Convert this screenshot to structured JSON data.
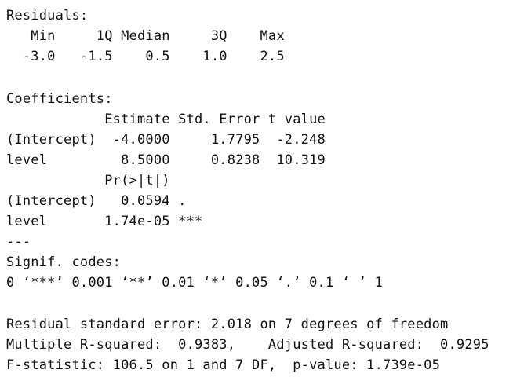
{
  "residuals": {
    "heading": "Residuals:",
    "header_row": "   Min     1Q Median     3Q    Max",
    "value_row": "  -3.0   -1.5    0.5    1.0    2.5"
  },
  "coefficients": {
    "heading": "Coefficients:",
    "header_row_1": "            Estimate Std. Error t value",
    "intercept_row_1": "(Intercept)  -4.0000     1.7795  -2.248",
    "level_row_1": "level         8.5000     0.8238  10.319",
    "header_row_2": "            Pr(>|t|)",
    "intercept_row_2": "(Intercept)   0.0594 .",
    "level_row_2": "level       1.74e-05 ***",
    "separator": "---"
  },
  "signif": {
    "heading": "Signif. codes:",
    "codes": "0 ‘***’ 0.001 ‘**’ 0.01 ‘*’ 0.05 ‘.’ 0.1 ‘ ’ 1"
  },
  "summary": {
    "residual_se": "Residual standard error: 2.018 on 7 degrees of freedom",
    "r_squared": "Multiple R-squared:  0.9383,    Adjusted R-squared:  0.9295",
    "f_statistic": "F-statistic: 106.5 on 1 and 7 DF,  p-value: 1.739e-05"
  }
}
